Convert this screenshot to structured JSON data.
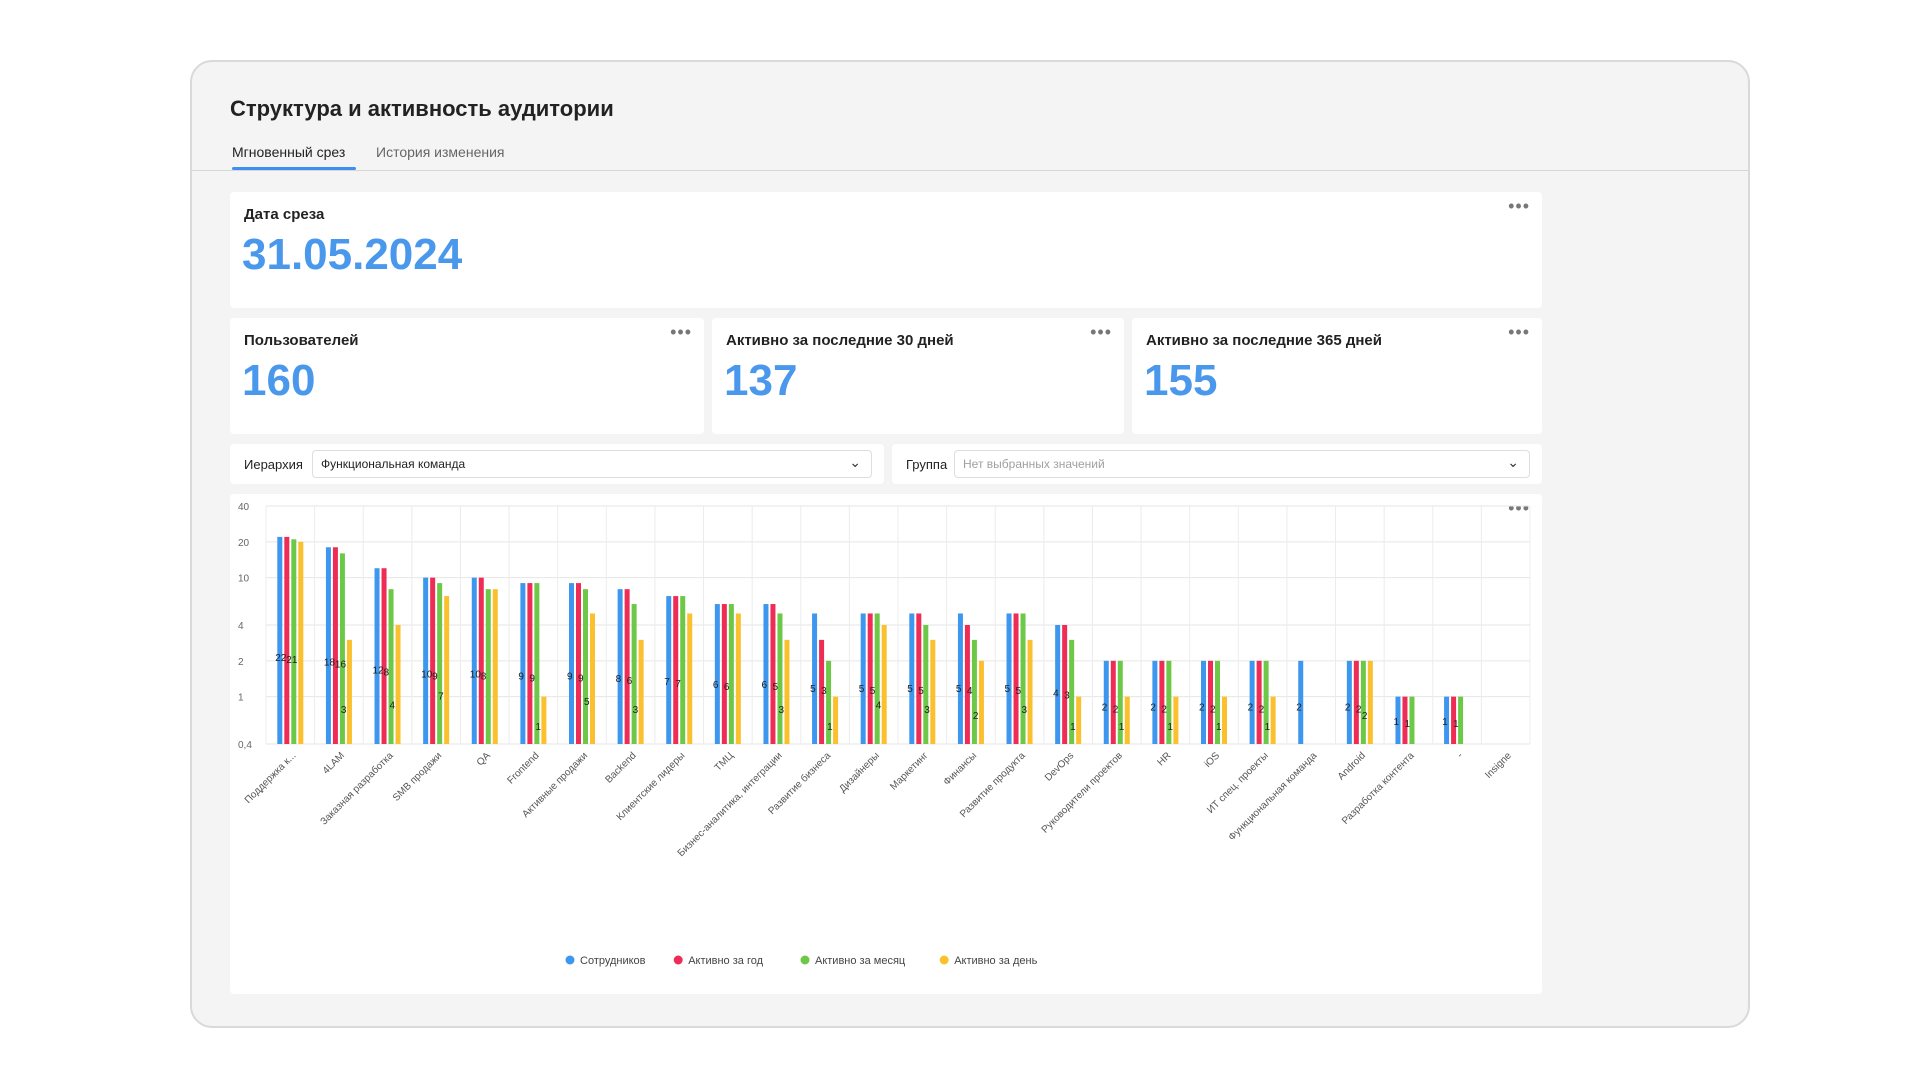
{
  "page_title": "Структура и активность аудитории",
  "tabs": [
    {
      "label": "Мгновенный срез",
      "active": true
    },
    {
      "label": "История изменения",
      "active": false
    }
  ],
  "date_card": {
    "label": "Дата среза",
    "value": "31.05.2024"
  },
  "kpis": [
    {
      "label": "Пользователей",
      "value": "160"
    },
    {
      "label": "Активно за последние 30 дней",
      "value": "137"
    },
    {
      "label": "Активно за последние 365 дней",
      "value": "155"
    }
  ],
  "filters": {
    "hierarchy": {
      "label": "Иерархия",
      "value": "Функциональная команда"
    },
    "group": {
      "label": "Группа",
      "placeholder": "Нет выбранных значений"
    }
  },
  "more_icon": "•••",
  "chevron_icon": "⌄",
  "chart_data": {
    "type": "bar",
    "y_scale": "log",
    "y_ticks": [
      "0,4",
      "1",
      "2",
      "4",
      "10",
      "20",
      "40"
    ],
    "y_tick_values": [
      0.4,
      1,
      2,
      4,
      10,
      20,
      40
    ],
    "ylim": [
      0.4,
      40
    ],
    "grid": true,
    "legend_position": "bottom",
    "colors": [
      "#3d97ee",
      "#ee2c55",
      "#6cc846",
      "#fbc02d"
    ],
    "categories": [
      "Поддержка к...",
      "4LAM",
      "Заказная разработка",
      "SMB продажи",
      "QA",
      "Frontend",
      "Активные продажи",
      "Backend",
      "Клиентские лидеры",
      "ТМЦ",
      "Бизнес-аналитика, интеграции",
      "Развитие бизнеса",
      "Дизайнеры",
      "Маркетинг",
      "Финансы",
      "Развитие продукта",
      "DevOps",
      "Руководители проектов",
      "HR",
      "iOS",
      "ИТ спец. проекты",
      "Функциональная команда",
      "Android",
      "Разработка контента",
      "-",
      "Insigne"
    ],
    "series": [
      {
        "name": "Сотрудников",
        "values": [
          22,
          18,
          12,
          10,
          10,
          9,
          9,
          8,
          7,
          6,
          6,
          5,
          5,
          5,
          5,
          5,
          4,
          2,
          2,
          2,
          2,
          2,
          2,
          1,
          1,
          null
        ]
      },
      {
        "name": "Активно за год",
        "values": [
          22,
          18,
          12,
          10,
          10,
          9,
          9,
          8,
          7,
          6,
          6,
          3,
          5,
          5,
          4,
          5,
          4,
          2,
          2,
          2,
          2,
          null,
          2,
          1,
          1,
          null
        ]
      },
      {
        "name": "Активно за месяц",
        "values": [
          21,
          16,
          8,
          9,
          8,
          9,
          8,
          6,
          7,
          6,
          5,
          2,
          5,
          4,
          3,
          5,
          3,
          2,
          2,
          2,
          2,
          null,
          2,
          1,
          1,
          null
        ]
      },
      {
        "name": "Активно за день",
        "values": [
          20,
          3,
          4,
          7,
          8,
          1,
          5,
          3,
          5,
          5,
          3,
          1,
          4,
          3,
          2,
          3,
          1,
          1,
          1,
          1,
          1,
          null,
          2,
          null,
          null,
          null
        ]
      }
    ],
    "labels": [
      [
        "22",
        "21",
        "",
        "",
        "22 21",
        "",
        "",
        ""
      ],
      [
        "18",
        "16",
        "",
        "3"
      ],
      [
        "12",
        "8",
        "",
        "4"
      ],
      [
        "10",
        "9",
        "",
        "7"
      ],
      [
        "10",
        "8",
        "8",
        ""
      ],
      [
        "9",
        "9",
        "",
        "1"
      ],
      [
        "9",
        "9",
        "8",
        "5"
      ],
      [
        "8",
        "6",
        "",
        "3"
      ],
      [
        "7",
        "7",
        "",
        ""
      ],
      [
        "6",
        "6",
        "",
        ""
      ],
      [
        "6",
        "5",
        "",
        "3"
      ],
      [
        "5",
        "3",
        "2",
        "1"
      ],
      [
        "5",
        "5",
        "",
        "4"
      ],
      [
        "5",
        "5",
        "",
        "3"
      ],
      [
        "5",
        "4",
        "",
        "2"
      ],
      [
        "5",
        "5",
        "",
        "3"
      ],
      [
        "4",
        "3",
        "",
        "1"
      ],
      [
        "2",
        "2",
        "",
        "1"
      ],
      [
        "2",
        "2",
        "",
        "1"
      ],
      [
        "2",
        "2",
        "",
        "1"
      ],
      [
        "2",
        "2",
        "",
        "1"
      ],
      [
        "2",
        "",
        "",
        ""
      ],
      [
        "2",
        "2",
        "",
        "2"
      ],
      [
        "1",
        "1",
        "",
        ""
      ],
      [
        "1",
        "1",
        "",
        ""
      ],
      [
        "",
        "",
        "",
        ""
      ]
    ]
  }
}
